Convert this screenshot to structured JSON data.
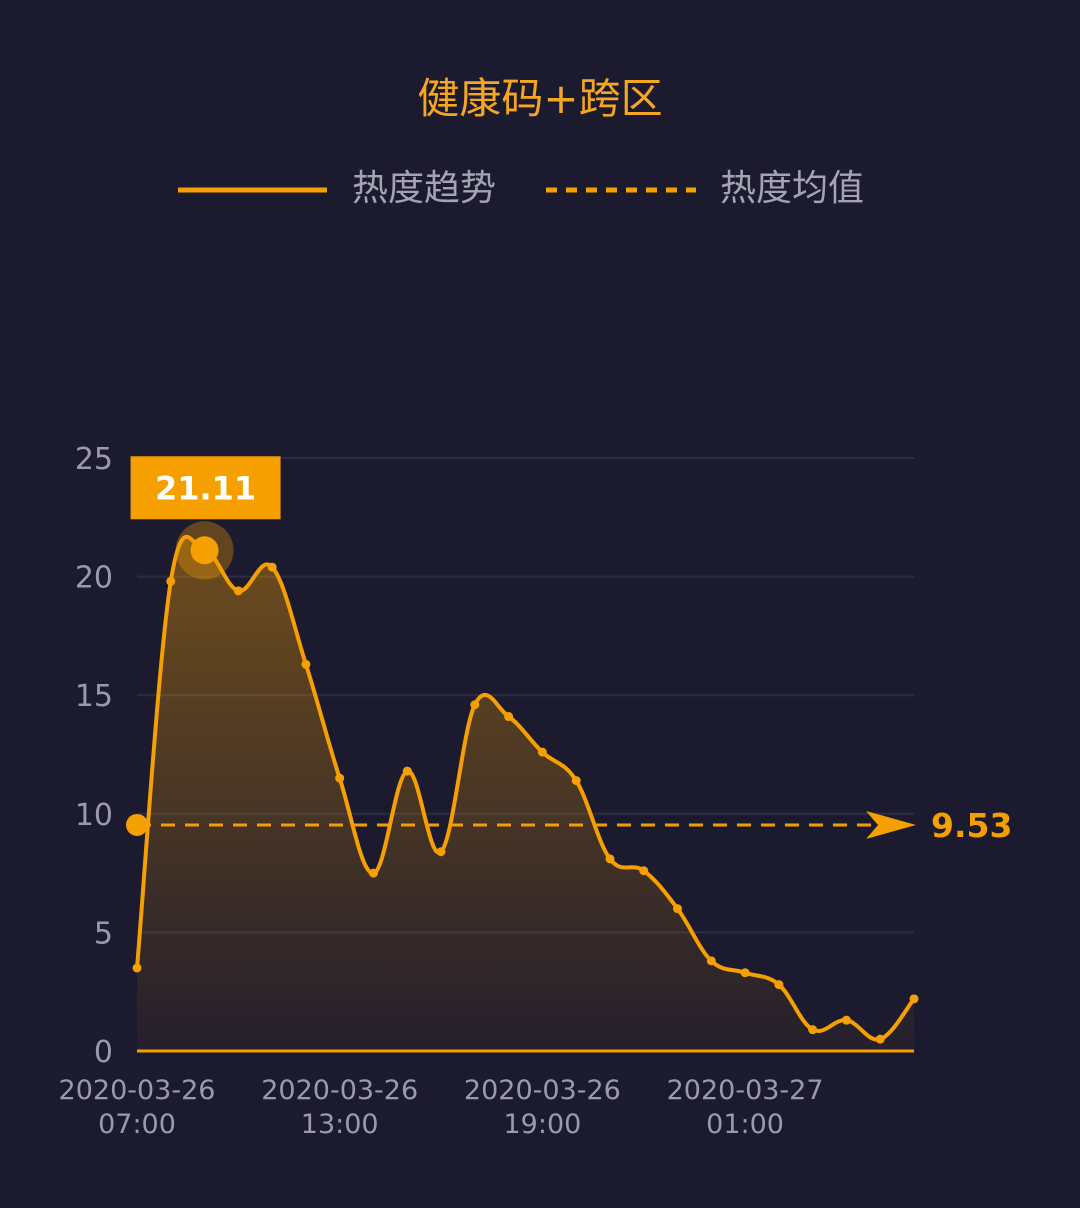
{
  "chart_data": {
    "type": "area",
    "title": "健康码+跨区",
    "legend": {
      "placement": "top-center",
      "entries": [
        {
          "label": "热度趋势",
          "style": "solid"
        },
        {
          "label": "热度均值",
          "style": "dashed"
        }
      ]
    },
    "xlabel": "",
    "ylabel": "",
    "ylim": [
      0,
      25
    ],
    "yticks": [
      "0",
      "5",
      "10",
      "15",
      "20",
      "25"
    ],
    "xticks": [
      {
        "line1": "2020-03-26",
        "line2": "07:00"
      },
      {
        "line1": "2020-03-26",
        "line2": "13:00"
      },
      {
        "line1": "2020-03-26",
        "line2": "19:00"
      },
      {
        "line1": "2020-03-27",
        "line2": "01:00"
      }
    ],
    "grid": true,
    "series": [
      {
        "name": "热度趋势",
        "x": [
          "2020-03-26 07:00",
          "2020-03-26 08:00",
          "2020-03-26 09:00",
          "2020-03-26 10:00",
          "2020-03-26 11:00",
          "2020-03-26 12:00",
          "2020-03-26 13:00",
          "2020-03-26 14:00",
          "2020-03-26 15:00",
          "2020-03-26 16:00",
          "2020-03-26 17:00",
          "2020-03-26 18:00",
          "2020-03-26 19:00",
          "2020-03-26 20:00",
          "2020-03-26 21:00",
          "2020-03-26 22:00",
          "2020-03-26 23:00",
          "2020-03-27 00:00",
          "2020-03-27 01:00",
          "2020-03-27 02:00",
          "2020-03-27 03:00",
          "2020-03-27 04:00",
          "2020-03-27 05:00",
          "2020-03-27 06:00"
        ],
        "values": [
          3.5,
          19.8,
          21.11,
          19.4,
          20.4,
          16.3,
          11.5,
          7.5,
          11.8,
          8.4,
          14.6,
          14.1,
          12.6,
          11.4,
          8.1,
          7.6,
          6.0,
          3.8,
          3.3,
          2.8,
          0.9,
          1.3,
          0.5,
          2.2
        ],
        "color": "#f5a000"
      }
    ],
    "average": {
      "value": 9.53,
      "label": "9.53"
    },
    "peak": {
      "value": 21.11,
      "label": "21.11"
    },
    "colors": {
      "line": "#f5a000",
      "title": "#f5a623",
      "legend_text": "#a3a3b3",
      "axis_text": "#9a9aaa",
      "grid": "#2e2c44",
      "background": "#1c1a2e"
    }
  }
}
